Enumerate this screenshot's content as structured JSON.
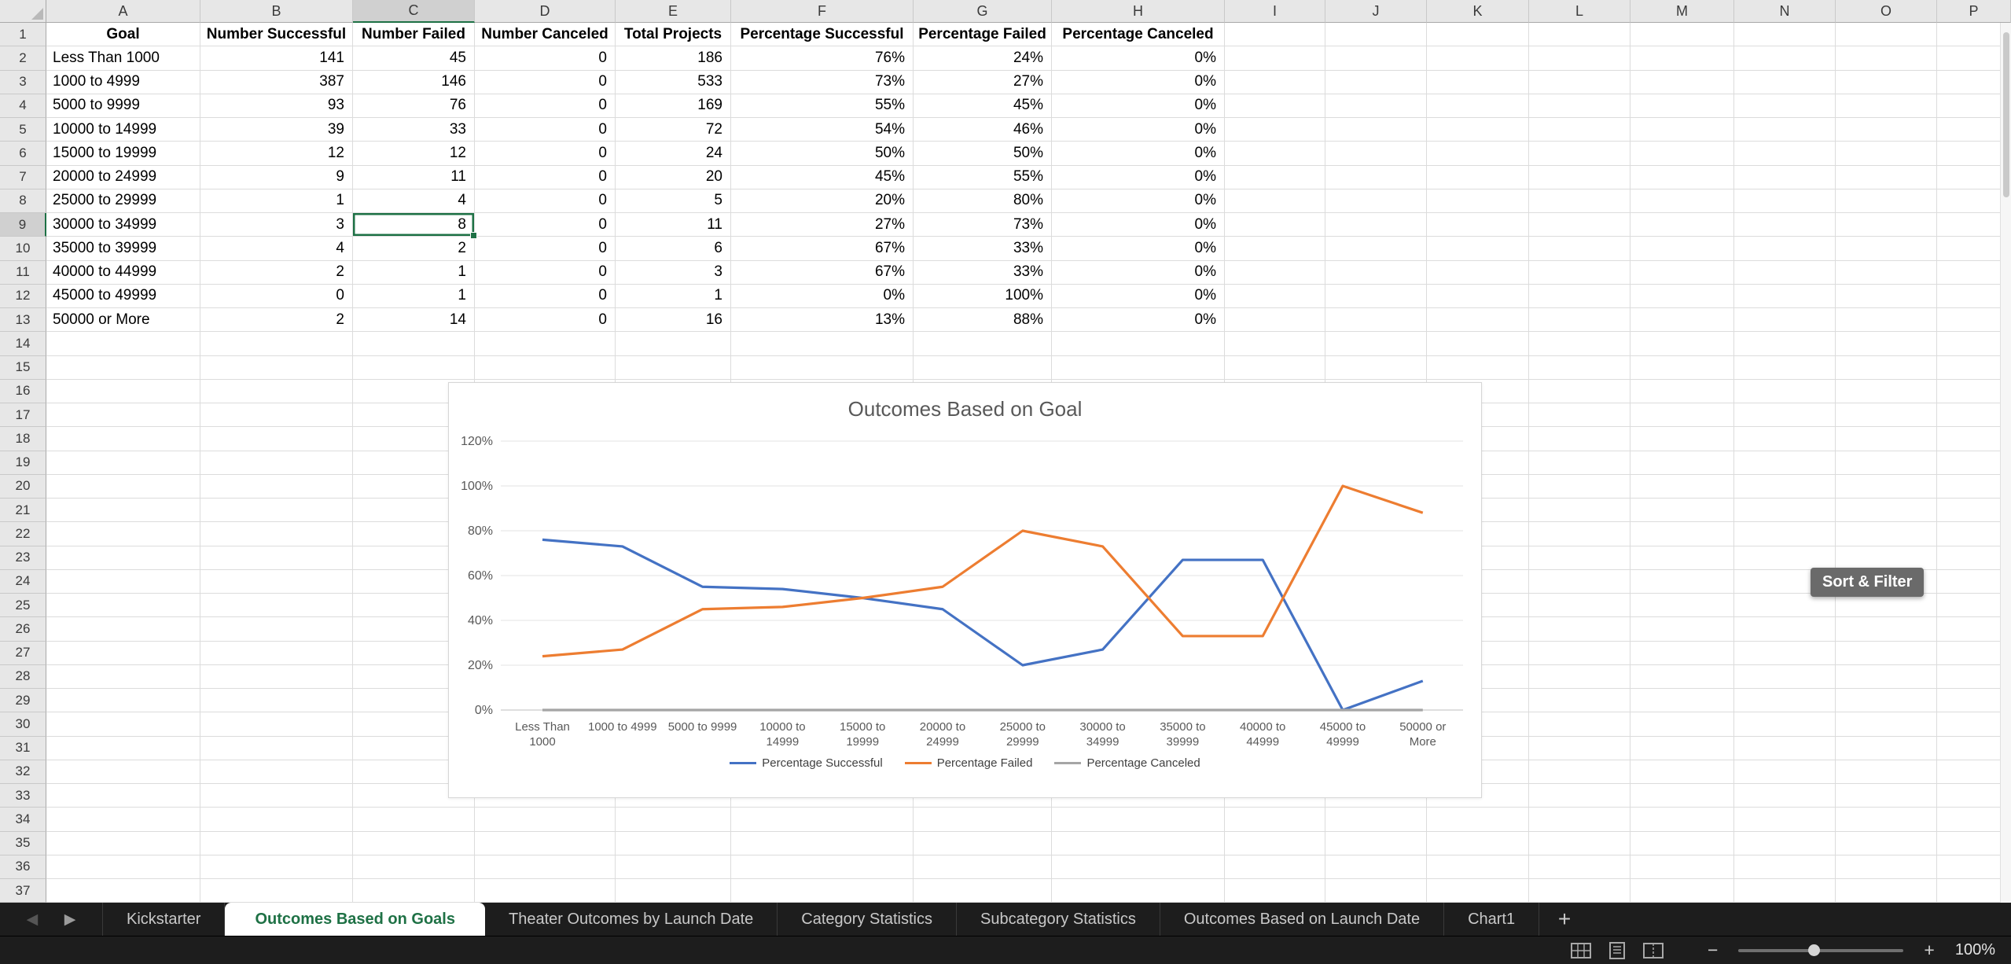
{
  "app": {
    "accent_green": "#1e7145"
  },
  "columns": [
    "A",
    "B",
    "C",
    "D",
    "E",
    "F",
    "G",
    "H",
    "I",
    "J",
    "K",
    "L",
    "M",
    "N",
    "O",
    "P"
  ],
  "rows_visible": 37,
  "selection": {
    "cell": "C9",
    "col": "C",
    "row": 9,
    "value": "8"
  },
  "table": {
    "headers": [
      "Goal",
      "Number Successful",
      "Number Failed",
      "Number Canceled",
      "Total Projects",
      "Percentage Successful",
      "Percentage Failed",
      "Percentage Canceled"
    ],
    "rows": [
      [
        "Less Than 1000",
        "141",
        "45",
        "0",
        "186",
        "76%",
        "24%",
        "0%"
      ],
      [
        "1000 to 4999",
        "387",
        "146",
        "0",
        "533",
        "73%",
        "27%",
        "0%"
      ],
      [
        "5000 to 9999",
        "93",
        "76",
        "0",
        "169",
        "55%",
        "45%",
        "0%"
      ],
      [
        "10000 to 14999",
        "39",
        "33",
        "0",
        "72",
        "54%",
        "46%",
        "0%"
      ],
      [
        "15000 to 19999",
        "12",
        "12",
        "0",
        "24",
        "50%",
        "50%",
        "0%"
      ],
      [
        "20000 to 24999",
        "9",
        "11",
        "0",
        "20",
        "45%",
        "55%",
        "0%"
      ],
      [
        "25000 to 29999",
        "1",
        "4",
        "0",
        "5",
        "20%",
        "80%",
        "0%"
      ],
      [
        "30000 to 34999",
        "3",
        "8",
        "0",
        "11",
        "27%",
        "73%",
        "0%"
      ],
      [
        "35000 to 39999",
        "4",
        "2",
        "0",
        "6",
        "67%",
        "33%",
        "0%"
      ],
      [
        "40000 to 44999",
        "2",
        "1",
        "0",
        "3",
        "67%",
        "33%",
        "0%"
      ],
      [
        "45000 to 49999",
        "0",
        "1",
        "0",
        "1",
        "0%",
        "100%",
        "0%"
      ],
      [
        "50000 or More",
        "2",
        "14",
        "0",
        "16",
        "13%",
        "88%",
        "0%"
      ]
    ]
  },
  "chart_data": {
    "type": "line",
    "title": "Outcomes Based on Goal",
    "categories": [
      "Less Than 1000",
      "1000 to 4999",
      "5000 to 9999",
      "10000 to 14999",
      "15000 to 19999",
      "20000 to 24999",
      "25000 to 29999",
      "30000 to 34999",
      "35000 to 39999",
      "40000 to 44999",
      "45000 to 49999",
      "50000 or More"
    ],
    "series": [
      {
        "name": "Percentage Successful",
        "color": "#4472C4",
        "values": [
          76,
          73,
          55,
          54,
          50,
          45,
          20,
          27,
          67,
          67,
          0,
          13
        ]
      },
      {
        "name": "Percentage Failed",
        "color": "#ED7D31",
        "values": [
          24,
          27,
          45,
          46,
          50,
          55,
          80,
          73,
          33,
          33,
          100,
          88
        ]
      },
      {
        "name": "Percentage Canceled",
        "color": "#A5A5A5",
        "values": [
          0,
          0,
          0,
          0,
          0,
          0,
          0,
          0,
          0,
          0,
          0,
          0
        ]
      }
    ],
    "ylim": [
      0,
      120
    ],
    "ytick_step": 20,
    "ytick_suffix": "%",
    "grid": true,
    "legend_position": "bottom"
  },
  "tooltip": {
    "label": "Sort & Filter"
  },
  "sheet_tabs": {
    "tabs": [
      {
        "label": "Kickstarter",
        "active": false
      },
      {
        "label": "Outcomes Based on Goals",
        "active": true
      },
      {
        "label": "Theater Outcomes by Launch Date",
        "active": false
      },
      {
        "label": "Category Statistics",
        "active": false
      },
      {
        "label": "Subcategory Statistics",
        "active": false
      },
      {
        "label": "Outcomes Based on Launch Date",
        "active": false
      },
      {
        "label": "Chart1",
        "active": false
      }
    ],
    "add_label": "+"
  },
  "status_bar": {
    "zoom_label": "100%"
  },
  "icons": {
    "tab_nav_left": "◀",
    "tab_nav_right": "▶",
    "add_sheet": "+",
    "zoom_out": "−",
    "zoom_in": "+"
  }
}
